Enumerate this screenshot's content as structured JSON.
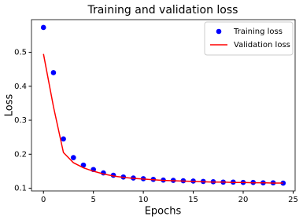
{
  "chart_data": {
    "type": "line",
    "title": "Training and validation loss",
    "x_label": "Epochs",
    "y_label": "Loss",
    "x": [
      0,
      1,
      2,
      3,
      4,
      5,
      6,
      7,
      8,
      9,
      10,
      11,
      12,
      13,
      14,
      15,
      16,
      17,
      18,
      19,
      20,
      21,
      22,
      23,
      24
    ],
    "series": [
      {
        "name": "Training loss",
        "color": "#0000ff",
        "style": "dots",
        "values": [
          0.573,
          0.44,
          0.245,
          0.19,
          0.168,
          0.155,
          0.145,
          0.138,
          0.133,
          0.13,
          0.128,
          0.126,
          0.124,
          0.123,
          0.122,
          0.121,
          0.12,
          0.119,
          0.118,
          0.118,
          0.117,
          0.117,
          0.116,
          0.116,
          0.115
        ]
      },
      {
        "name": "Validation loss",
        "color": "#ff0000",
        "style": "line",
        "values": [
          0.495,
          0.34,
          0.205,
          0.175,
          0.16,
          0.15,
          0.142,
          0.136,
          0.132,
          0.129,
          0.127,
          0.125,
          0.123,
          0.122,
          0.121,
          0.12,
          0.119,
          0.118,
          0.118,
          0.117,
          0.117,
          0.116,
          0.116,
          0.115,
          0.115
        ]
      }
    ],
    "xlim": [
      -1.2,
      25.2
    ],
    "xticks": [
      0,
      5,
      10,
      15,
      20,
      25
    ],
    "ylim": [
      0.092,
      0.596
    ],
    "yticks": [
      0.1,
      0.2,
      0.3,
      0.4,
      0.5
    ],
    "grid": false,
    "legend": "upper right"
  }
}
